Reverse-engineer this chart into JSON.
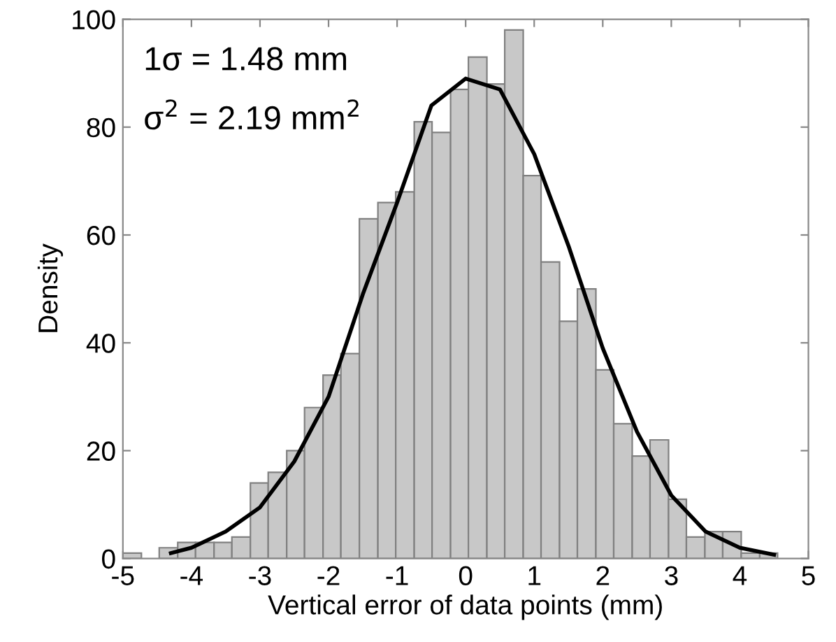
{
  "chart_data": {
    "type": "histogram",
    "xlabel": "Vertical error of data points (mm)",
    "ylabel": "Density",
    "annotations": [
      "1σ = 1.48 mm",
      "σ$^{2}$ = 2.19 mm$^{2}$"
    ],
    "series": [
      {
        "color": "#c8c8c8",
        "bins": [
          -5.0,
          -4.73,
          -4.47,
          -4.2,
          -3.94,
          -3.67,
          -3.41,
          -3.14,
          -2.88,
          -2.61,
          -2.35,
          -2.08,
          -1.82,
          -1.55,
          -1.28,
          -1.02,
          -0.75,
          -0.49,
          -0.22,
          0.04,
          0.31,
          0.57,
          0.84,
          1.1,
          1.37,
          1.63,
          1.9,
          2.16,
          2.43,
          2.69,
          2.96,
          3.22,
          3.49,
          3.75,
          4.02,
          4.29,
          4.55
        ],
        "values": [
          1,
          0,
          2,
          3,
          3,
          3,
          4,
          14,
          16,
          20,
          28,
          34,
          38,
          63,
          66,
          68,
          81,
          79,
          87,
          93,
          88,
          98,
          71,
          55,
          44,
          50,
          35,
          25,
          19,
          22,
          11,
          4,
          5,
          5,
          1,
          1
        ]
      },
      {
        "type": "line",
        "color": "#000000",
        "x": [
          -4.3,
          -4,
          -3.5,
          -3,
          -2.5,
          -2,
          -1.5,
          -1,
          -0.5,
          0,
          0.5,
          1,
          1.5,
          2,
          2.5,
          3,
          3.5,
          4,
          4.5
        ],
        "values": [
          1,
          2,
          5,
          9.5,
          18,
          30,
          49,
          66,
          84,
          89,
          87,
          75,
          58,
          39,
          23.5,
          11.7,
          5,
          2,
          0.7
        ]
      }
    ],
    "xlim": [
      -5,
      5
    ],
    "xticks": [
      -5,
      -4,
      -3,
      -2,
      -1,
      0,
      1,
      2,
      3,
      4,
      5
    ],
    "ylim": [
      0,
      100
    ],
    "yticks": [
      0,
      20,
      40,
      60,
      80,
      100
    ],
    "grid": false,
    "legend": false
  }
}
